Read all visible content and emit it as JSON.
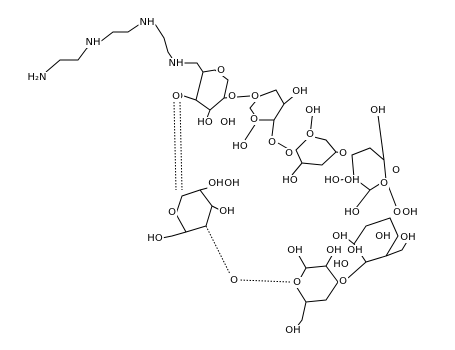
{
  "labels": [
    "H₂N",
    "NH",
    "NH",
    "NH",
    "O",
    "O",
    "HO",
    "OH",
    "O",
    "O",
    "OH",
    "O",
    "HO",
    "O",
    "OH",
    "O",
    "O",
    "HO",
    "O",
    "OH",
    "HO",
    "OH",
    "O",
    "HO",
    "O",
    "OH",
    "OH",
    "O",
    "OH",
    "OH",
    "O",
    "HO",
    "O",
    "OH",
    "OH",
    "OH",
    "O",
    "O",
    "OH",
    "HO",
    "OH",
    "OH",
    "O",
    "OH"
  ]
}
